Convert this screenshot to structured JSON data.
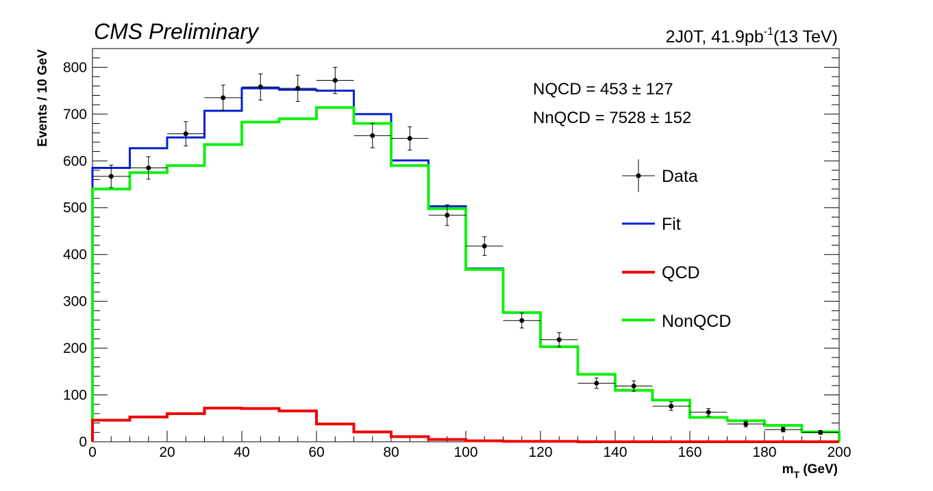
{
  "header": {
    "title": "CMS Preliminary",
    "region": "2J0T, 41.9pb",
    "lumi_sup": "-1",
    "energy": "(13 TeV)"
  },
  "fit_results": {
    "nqcd": "NQCD =  453 ± 127",
    "nnqcd": "NnQCD =  7528 ± 152"
  },
  "legend": {
    "data": "Data",
    "fit": "Fit",
    "qcd": "QCD",
    "nonqcd": "NonQCD"
  },
  "colors": {
    "fit": "#0020d0",
    "qcd": "#f00000",
    "nonqcd": "#10f010",
    "data": "#000000"
  },
  "chart_data": {
    "type": "line",
    "xlabel_main": "m",
    "xlabel_sub": "T",
    "xlabel_unit": " (GeV)",
    "ylabel": "Events / 10 GeV",
    "xlim": [
      0,
      200
    ],
    "ylim": [
      0,
      840
    ],
    "x_ticks": [
      0,
      20,
      40,
      60,
      80,
      100,
      120,
      140,
      160,
      180,
      200
    ],
    "y_ticks": [
      0,
      100,
      200,
      300,
      400,
      500,
      600,
      700,
      800
    ],
    "bin_edges": [
      0,
      10,
      20,
      30,
      40,
      50,
      60,
      70,
      80,
      90,
      100,
      110,
      120,
      130,
      140,
      150,
      160,
      170,
      180,
      190,
      200
    ],
    "series": [
      {
        "name": "Fit",
        "kind": "step",
        "values": [
          585,
          627,
          650,
          707,
          755,
          752,
          750,
          700,
          601,
          503,
          370,
          276,
          203,
          144,
          110,
          89,
          52,
          45,
          35,
          21
        ]
      },
      {
        "name": "QCD",
        "kind": "step",
        "values": [
          46,
          53,
          60,
          72,
          71,
          66,
          38,
          21,
          11,
          5,
          2,
          1,
          1,
          0,
          0,
          0,
          0,
          0,
          0,
          0
        ]
      },
      {
        "name": "NonQCD",
        "kind": "step",
        "values": [
          540,
          575,
          590,
          635,
          683,
          690,
          714,
          680,
          590,
          498,
          368,
          276,
          203,
          144,
          110,
          89,
          52,
          45,
          35,
          21
        ]
      },
      {
        "name": "Data",
        "kind": "points",
        "x": [
          5,
          15,
          25,
          35,
          45,
          55,
          65,
          75,
          85,
          95,
          105,
          115,
          125,
          135,
          145,
          155,
          165,
          175,
          185,
          195
        ],
        "y": [
          567,
          585,
          658,
          735,
          758,
          755,
          772,
          654,
          648,
          484,
          418,
          259,
          218,
          125,
          119,
          76,
          63,
          38,
          26,
          20
        ],
        "yerr": [
          24,
          24,
          26,
          27,
          28,
          28,
          28,
          26,
          25,
          22,
          20,
          16,
          15,
          11,
          11,
          9,
          8,
          6,
          5,
          4
        ]
      }
    ]
  }
}
